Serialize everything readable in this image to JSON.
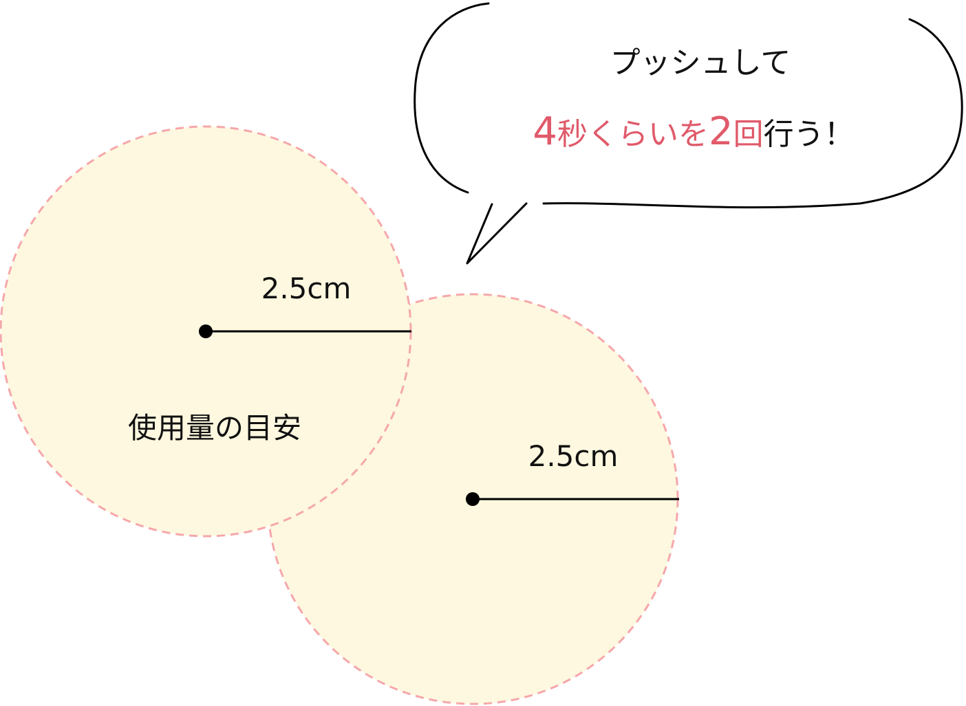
{
  "speech_bubble": {
    "line1": "プッシュして",
    "line2": {
      "seconds_number": "4",
      "seconds_text": "秒くらいを",
      "count_number": "2",
      "count_text": "回",
      "tail_text": "行う！"
    }
  },
  "circles": {
    "circle1": {
      "radius_label": "2.5cm",
      "caption": "使用量の目安"
    },
    "circle2": {
      "radius_label": "2.5cm"
    }
  },
  "colors": {
    "circle_fill": "#fdf8df",
    "circle_border": "#f6a7ab",
    "accent_text": "#e05a6a",
    "line": "#000000"
  }
}
